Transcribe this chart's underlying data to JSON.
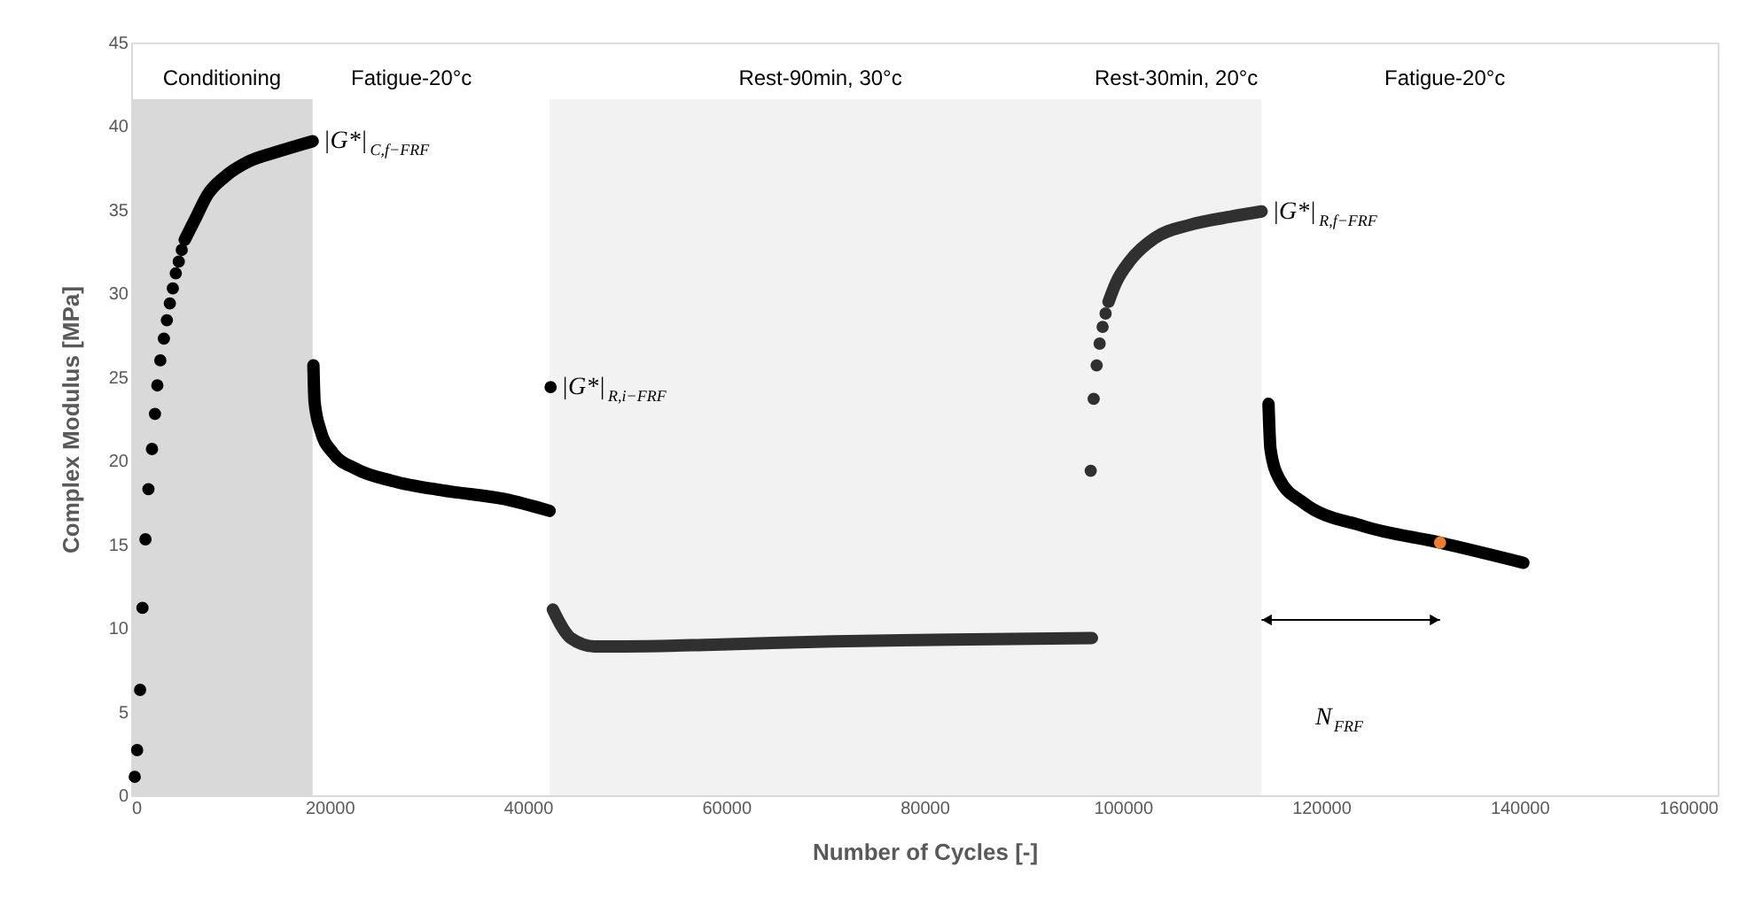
{
  "chart_data": {
    "type": "scatter",
    "xlabel": "Number of Cycles [-]",
    "ylabel": "Complex Modulus [MPa]",
    "xlim": [
      0,
      160000
    ],
    "xticks": [
      0,
      20000,
      40000,
      60000,
      80000,
      100000,
      120000,
      140000,
      160000
    ],
    "ylim": [
      0,
      45
    ],
    "yticks": [
      0,
      5,
      10,
      15,
      20,
      25,
      30,
      35,
      40,
      45
    ],
    "grid": false,
    "bands": [
      {
        "axis": "x",
        "from": 0,
        "to": 18300,
        "label": "Conditioning",
        "color": "#d9d9d9"
      },
      {
        "axis": "x",
        "from": 42200,
        "to": 96800,
        "label": "Rest-90min, 30°c",
        "color": "#f2f2f2"
      },
      {
        "axis": "x",
        "from": 96800,
        "to": 114000,
        "label": "Rest-30min, 20°c",
        "color": "#f2f2f2"
      }
    ],
    "series": [
      {
        "marker": "circle",
        "color": "#000000",
        "x": [
          360,
          600,
          900,
          1140,
          1440,
          1740,
          2100,
          2400,
          2640,
          2940,
          3300,
          3600,
          3900,
          4200,
          4500,
          4800,
          5100
        ],
        "values": [
          1.1,
          2.7,
          6.3,
          11.2,
          15.3,
          18.3,
          20.7,
          22.8,
          24.5,
          26.0,
          27.3,
          28.4,
          29.4,
          30.3,
          31.2,
          31.9,
          32.6
        ]
      },
      {
        "type": "line",
        "color": "#000000",
        "x": [
          5400,
          6500,
          7700,
          9500,
          11900,
          14900,
          18300
        ],
        "values": [
          33.2,
          34.5,
          35.9,
          37.0,
          37.9,
          38.5,
          39.1
        ]
      },
      {
        "type": "line",
        "color": "#000000",
        "x": [
          18380,
          18500,
          19100,
          20300,
          22700,
          26300,
          31700,
          37700,
          42200
        ],
        "values": [
          25.7,
          23.5,
          21.8,
          20.5,
          19.5,
          18.8,
          18.2,
          17.7,
          17.0
        ]
      },
      {
        "marker": "circle",
        "color": "#000000",
        "x": [
          42300
        ],
        "values": [
          24.4
        ]
      },
      {
        "type": "line",
        "color": "#303030",
        "x": [
          42530,
          44330,
          46730,
          49740,
          58750,
          70760,
          82700,
          96890
        ],
        "values": [
          11.1,
          9.4,
          8.9,
          8.9,
          9.0,
          9.2,
          9.3,
          9.4
        ]
      },
      {
        "marker": "circle",
        "color": "#303030",
        "x": [
          96770,
          97070,
          97370,
          97670,
          97970,
          98270
        ],
        "values": [
          19.4,
          23.7,
          25.7,
          27.0,
          28.0,
          28.8
        ]
      },
      {
        "type": "line",
        "color": "#303030",
        "x": [
          98570,
          99290,
          100800,
          103200,
          106800,
          111000,
          114000
        ],
        "values": [
          29.5,
          30.6,
          32.0,
          33.3,
          34.1,
          34.6,
          34.9
        ]
      },
      {
        "type": "line",
        "color": "#000000",
        "x": [
          114700,
          114900,
          115800,
          118200,
          124200,
          132000,
          140400
        ],
        "values": [
          23.4,
          20.7,
          18.9,
          17.5,
          16.1,
          15.1,
          13.9
        ]
      },
      {
        "marker": "circle",
        "color": "#ed7d31",
        "x": [
          132000
        ],
        "values": [
          15.1
        ]
      }
    ],
    "annotations": [
      "Fatigue-20°c",
      "Fatigue-20°c",
      {
        "text": "|G*|$_{C,f−FRF}$",
        "x": 18300,
        "y": 39.1
      },
      {
        "text": "|G*|$_{R,i−FRF}$",
        "x": 42300,
        "y": 24.4
      },
      {
        "text": "|G*|$_{R,f−FRF}$",
        "x": 114000,
        "y": 34.9
      },
      "N$_{FRF}$"
    ]
  }
}
